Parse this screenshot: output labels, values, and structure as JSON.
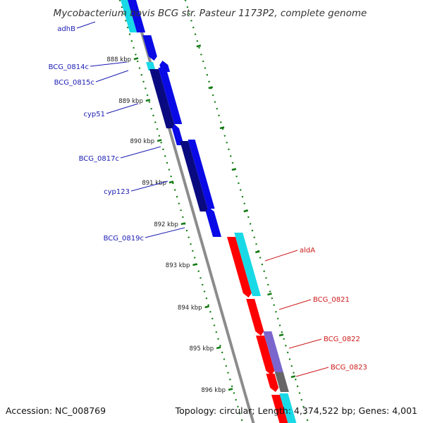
{
  "title": "Mycobacterium bovis BCG str. Pasteur 1173P2, complete genome",
  "colors": {
    "backbone": "#8c8c8c",
    "tick": "#137a13",
    "reverse_label": "#1a1ab3",
    "forward_label": "#cc1a1a",
    "cds_blue": "#0a0ae6",
    "cds_navy": "#0a0a80",
    "cds_cyan": "#1ad9e6",
    "cds_red": "#ff0000",
    "cds_purple": "#7a66cc",
    "cds_gray": "#666666"
  },
  "ticks": [
    {
      "label": "888 kbp"
    },
    {
      "label": "889 kbp"
    },
    {
      "label": "890 kbp"
    },
    {
      "label": "891 kbp"
    },
    {
      "label": "892 kbp"
    },
    {
      "label": "893 kbp"
    },
    {
      "label": "894 kbp"
    },
    {
      "label": "895 kbp"
    },
    {
      "label": "896 kbp"
    }
  ],
  "reverse_genes": [
    {
      "name": "adhB"
    },
    {
      "name": "BCG_0814c"
    },
    {
      "name": "BCG_0815c"
    },
    {
      "name": "cyp51"
    },
    {
      "name": "BCG_0817c"
    },
    {
      "name": "cyp123"
    },
    {
      "name": "BCG_0819c"
    }
  ],
  "forward_genes": [
    {
      "name": "aldA"
    },
    {
      "name": "BCG_0821"
    },
    {
      "name": "BCG_0822"
    },
    {
      "name": "BCG_0823"
    }
  ],
  "footer": {
    "accession": "Accession: NC_008769",
    "summary": "Topology: circular; Length: 4,374,522 bp; Genes: 4,001"
  }
}
